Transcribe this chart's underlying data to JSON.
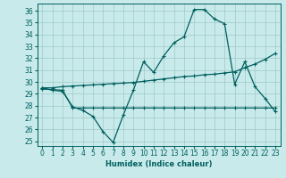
{
  "xlabel": "Humidex (Indice chaleur)",
  "x_ticks": [
    0,
    1,
    2,
    3,
    4,
    5,
    6,
    7,
    8,
    9,
    10,
    11,
    12,
    13,
    14,
    15,
    16,
    17,
    18,
    19,
    20,
    21,
    22,
    23
  ],
  "ylim": [
    24.6,
    36.6
  ],
  "xlim": [
    -0.5,
    23.5
  ],
  "yticks": [
    25,
    26,
    27,
    28,
    29,
    30,
    31,
    32,
    33,
    34,
    35,
    36
  ],
  "bg_color": "#c8eaea",
  "grid_color": "#a0c8c8",
  "line_color": "#005f5f",
  "series1_y": [
    29.5,
    29.3,
    29.2,
    27.9,
    27.6,
    27.1,
    25.8,
    24.9,
    27.2,
    29.3,
    31.7,
    30.8,
    32.2,
    33.3,
    33.8,
    36.1,
    36.1,
    35.3,
    34.9,
    29.8,
    31.7,
    29.6,
    28.6,
    27.5
  ],
  "series2_y": [
    29.5,
    29.5,
    29.6,
    29.65,
    29.7,
    29.75,
    29.8,
    29.85,
    29.9,
    29.95,
    30.05,
    30.15,
    30.25,
    30.35,
    30.45,
    30.5,
    30.6,
    30.65,
    30.75,
    30.85,
    31.2,
    31.5,
    31.9,
    32.4
  ],
  "series3_y": [
    29.4,
    29.35,
    29.3,
    27.8,
    27.8,
    27.8,
    27.8,
    27.8,
    27.8,
    27.8,
    27.8,
    27.8,
    27.8,
    27.8,
    27.8,
    27.8,
    27.8,
    27.8,
    27.8,
    27.8,
    27.8,
    27.8,
    27.8,
    27.8
  ]
}
